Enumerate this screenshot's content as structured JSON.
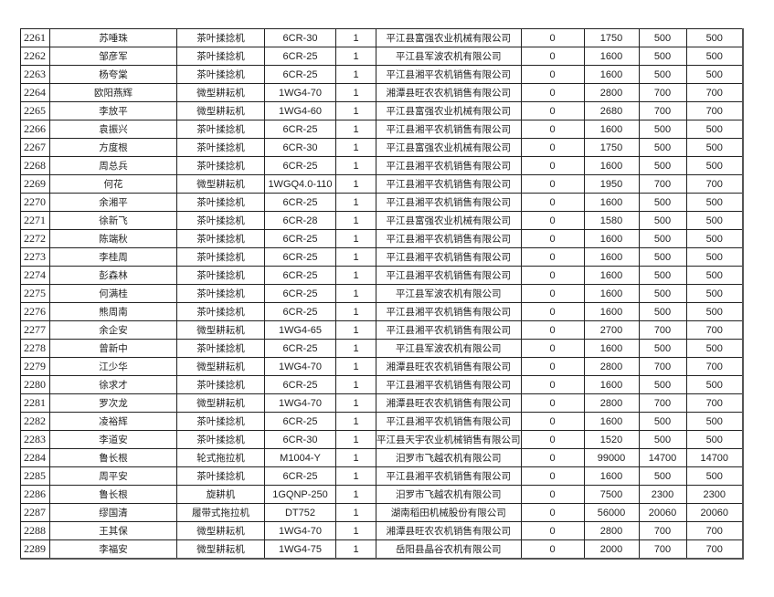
{
  "rows": [
    [
      "2261",
      "苏唾珠",
      "茶叶揉捻机",
      "6CR-30",
      "1",
      "平江县富强农业机械有限公司",
      "0",
      "1750",
      "500",
      "500"
    ],
    [
      "2262",
      "邹彦军",
      "茶叶揉捻机",
      "6CR-25",
      "1",
      "平江县军波农机有限公司",
      "0",
      "1600",
      "500",
      "500"
    ],
    [
      "2263",
      "杨夸棠",
      "茶叶揉捻机",
      "6CR-25",
      "1",
      "平江县湘平农机销售有限公司",
      "0",
      "1600",
      "500",
      "500"
    ],
    [
      "2264",
      "欧阳燕辉",
      "微型耕耘机",
      "1WG4-70",
      "1",
      "湘潭县旺农农机销售有限公司",
      "0",
      "2800",
      "700",
      "700"
    ],
    [
      "2265",
      "李放平",
      "微型耕耘机",
      "1WG4-60",
      "1",
      "平江县富强农业机械有限公司",
      "0",
      "2680",
      "700",
      "700"
    ],
    [
      "2266",
      "袁振兴",
      "茶叶揉捻机",
      "6CR-25",
      "1",
      "平江县湘平农机销售有限公司",
      "0",
      "1600",
      "500",
      "500"
    ],
    [
      "2267",
      "方度根",
      "茶叶揉捻机",
      "6CR-30",
      "1",
      "平江县富强农业机械有限公司",
      "0",
      "1750",
      "500",
      "500"
    ],
    [
      "2268",
      "周总兵",
      "茶叶揉捻机",
      "6CR-25",
      "1",
      "平江县湘平农机销售有限公司",
      "0",
      "1600",
      "500",
      "500"
    ],
    [
      "2269",
      "何花",
      "微型耕耘机",
      "1WGQ4.0-110",
      "1",
      "平江县湘平农机销售有限公司",
      "0",
      "1950",
      "700",
      "700"
    ],
    [
      "2270",
      "余湘平",
      "茶叶揉捻机",
      "6CR-25",
      "1",
      "平江县湘平农机销售有限公司",
      "0",
      "1600",
      "500",
      "500"
    ],
    [
      "2271",
      "徐新飞",
      "茶叶揉捻机",
      "6CR-28",
      "1",
      "平江县富强农业机械有限公司",
      "0",
      "1580",
      "500",
      "500"
    ],
    [
      "2272",
      "陈端秋",
      "茶叶揉捻机",
      "6CR-25",
      "1",
      "平江县湘平农机销售有限公司",
      "0",
      "1600",
      "500",
      "500"
    ],
    [
      "2273",
      "李桂周",
      "茶叶揉捻机",
      "6CR-25",
      "1",
      "平江县湘平农机销售有限公司",
      "0",
      "1600",
      "500",
      "500"
    ],
    [
      "2274",
      "彭森林",
      "茶叶揉捻机",
      "6CR-25",
      "1",
      "平江县湘平农机销售有限公司",
      "0",
      "1600",
      "500",
      "500"
    ],
    [
      "2275",
      "何满桂",
      "茶叶揉捻机",
      "6CR-25",
      "1",
      "平江县军波农机有限公司",
      "0",
      "1600",
      "500",
      "500"
    ],
    [
      "2276",
      "熊周南",
      "茶叶揉捻机",
      "6CR-25",
      "1",
      "平江县湘平农机销售有限公司",
      "0",
      "1600",
      "500",
      "500"
    ],
    [
      "2277",
      "余企安",
      "微型耕耘机",
      "1WG4-65",
      "1",
      "平江县湘平农机销售有限公司",
      "0",
      "2700",
      "700",
      "700"
    ],
    [
      "2278",
      "曾新中",
      "茶叶揉捻机",
      "6CR-25",
      "1",
      "平江县军波农机有限公司",
      "0",
      "1600",
      "500",
      "500"
    ],
    [
      "2279",
      "江少华",
      "微型耕耘机",
      "1WG4-70",
      "1",
      "湘潭县旺农农机销售有限公司",
      "0",
      "2800",
      "700",
      "700"
    ],
    [
      "2280",
      "徐求才",
      "茶叶揉捻机",
      "6CR-25",
      "1",
      "平江县湘平农机销售有限公司",
      "0",
      "1600",
      "500",
      "500"
    ],
    [
      "2281",
      "罗次龙",
      "微型耕耘机",
      "1WG4-70",
      "1",
      "湘潭县旺农农机销售有限公司",
      "0",
      "2800",
      "700",
      "700"
    ],
    [
      "2282",
      "凌裕辉",
      "茶叶揉捻机",
      "6CR-25",
      "1",
      "平江县湘平农机销售有限公司",
      "0",
      "1600",
      "500",
      "500"
    ],
    [
      "2283",
      "李道安",
      "茶叶揉捻机",
      "6CR-30",
      "1",
      "平江县天宇农业机械销售有限公司",
      "0",
      "1520",
      "500",
      "500"
    ],
    [
      "2284",
      "鲁长根",
      "轮式拖拉机",
      "M1004-Y",
      "1",
      "汨罗市飞越农机有限公司",
      "0",
      "99000",
      "14700",
      "14700"
    ],
    [
      "2285",
      "周平安",
      "茶叶揉捻机",
      "6CR-25",
      "1",
      "平江县湘平农机销售有限公司",
      "0",
      "1600",
      "500",
      "500"
    ],
    [
      "2286",
      "鲁长根",
      "旋耕机",
      "1GQNP-250",
      "1",
      "汨罗市飞越农机有限公司",
      "0",
      "7500",
      "2300",
      "2300"
    ],
    [
      "2287",
      "缪国清",
      "履带式拖拉机",
      "DT752",
      "1",
      "湖南稻田机械股份有限公司",
      "0",
      "56000",
      "20060",
      "20060"
    ],
    [
      "2288",
      "王其保",
      "微型耕耘机",
      "1WG4-70",
      "1",
      "湘潭县旺农农机销售有限公司",
      "0",
      "2800",
      "700",
      "700"
    ],
    [
      "2289",
      "李福安",
      "微型耕耘机",
      "1WG4-75",
      "1",
      "岳阳县晶谷农机有限公司",
      "0",
      "2000",
      "700",
      "700"
    ]
  ]
}
